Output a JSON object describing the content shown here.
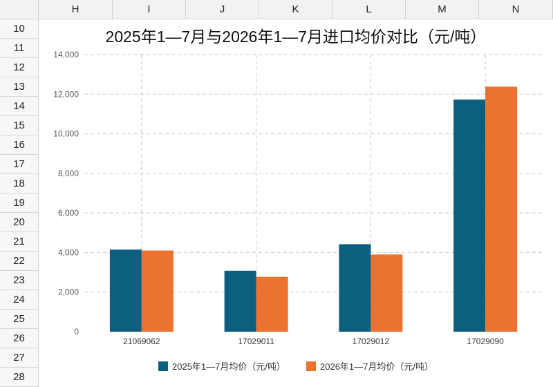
{
  "sheet": {
    "columns": [
      "H",
      "I",
      "J",
      "K",
      "L",
      "M",
      "N"
    ],
    "rows": [
      "10",
      "11",
      "12",
      "13",
      "14",
      "15",
      "16",
      "17",
      "18",
      "19",
      "20",
      "21",
      "22",
      "23",
      "24",
      "25",
      "26",
      "27",
      "28"
    ]
  },
  "chart_data": {
    "type": "bar",
    "title": "2025年1—7月与2026年1—7月进口均价对比（元/吨）",
    "categories": [
      "21069062",
      "17029011",
      "17029012",
      "17029090"
    ],
    "series": [
      {
        "name": "2025年1—7月均价（元/吨）",
        "color": "#0d5f80",
        "values": [
          4150,
          3080,
          4420,
          11730
        ]
      },
      {
        "name": "2026年1—7月均价（元/吨）",
        "color": "#ec7230",
        "values": [
          4100,
          2770,
          3900,
          12380
        ]
      }
    ],
    "ylim": [
      0,
      14000
    ],
    "yticks": [
      "0",
      "2,000",
      "4,000",
      "6,000",
      "8,000",
      "10,000",
      "12,000",
      "14,000"
    ],
    "grid": true,
    "legend_position": "bottom"
  }
}
